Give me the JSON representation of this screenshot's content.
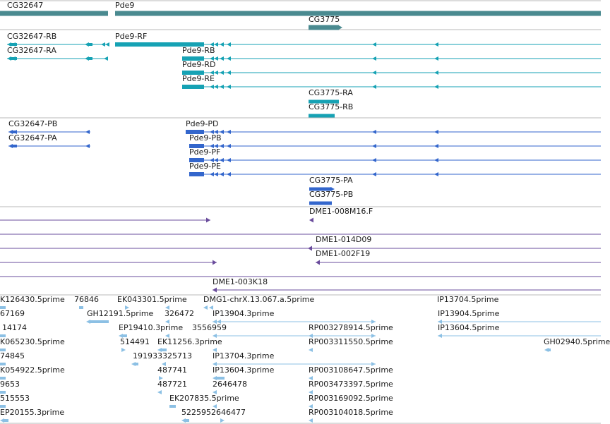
{
  "colors": {
    "gene": "#4a8a90",
    "mrna": "#16a2b4",
    "protein": "#3366cc",
    "clone": "#6a4c9c",
    "est": "#8cc0e4",
    "separator": "#b8b8b8"
  },
  "tracks": {
    "gene": {
      "title": "",
      "features": [
        {
          "id": "g1",
          "label": "CG32647"
        },
        {
          "id": "g2",
          "label": "Pde9"
        },
        {
          "id": "g3",
          "label": "CG3775"
        }
      ]
    },
    "mrna": {
      "title": "",
      "features": [
        {
          "id": "t1",
          "label": "CG32647-RB"
        },
        {
          "id": "t2",
          "label": "CG32647-RA"
        },
        {
          "id": "t3",
          "label": "Pde9-RF"
        },
        {
          "id": "t4",
          "label": "Pde9-RB"
        },
        {
          "id": "t5",
          "label": "Pde9-RD"
        },
        {
          "id": "t6",
          "label": "Pde9-RE"
        },
        {
          "id": "t7",
          "label": "CG3775-RA"
        },
        {
          "id": "t8",
          "label": "CG3775-RB"
        }
      ]
    },
    "protein": {
      "title": "",
      "features": [
        {
          "id": "p1",
          "label": "CG32647-PB"
        },
        {
          "id": "p2",
          "label": "CG32647-PA"
        },
        {
          "id": "p3",
          "label": "Pde9-PD"
        },
        {
          "id": "p4",
          "label": "Pde9-PB"
        },
        {
          "id": "p5",
          "label": "Pde9-PF"
        },
        {
          "id": "p6",
          "label": "Pde9-PE"
        },
        {
          "id": "p7",
          "label": "CG3775-PA"
        },
        {
          "id": "p8",
          "label": "CG3775-PB"
        }
      ]
    },
    "clone": {
      "title": "",
      "features": [
        {
          "id": "c1",
          "label": "DME1-008M16.F"
        },
        {
          "id": "c2",
          "label": "DME1-014D09"
        },
        {
          "id": "c3",
          "label": "DME1-002F19"
        },
        {
          "id": "c4",
          "label": "DME1-003K18"
        }
      ]
    },
    "est": {
      "title": "",
      "labels": [
        {
          "id": "e1",
          "label": "K126430.5prime"
        },
        {
          "id": "e2",
          "label": "76846"
        },
        {
          "id": "e3",
          "label": "EK043301.5prime"
        },
        {
          "id": "e4",
          "label": "DMG1-chrX.13.067.a.5prime"
        },
        {
          "id": "e5",
          "label": "IP13704.5prime"
        },
        {
          "id": "e6",
          "label": "67169"
        },
        {
          "id": "e7",
          "label": "GH12191.5prime"
        },
        {
          "id": "e8",
          "label": "326472"
        },
        {
          "id": "e9",
          "label": "IP13904.3prime"
        },
        {
          "id": "e10",
          "label": "IP13904.5prime"
        },
        {
          "id": "e11",
          "label": "14174"
        },
        {
          "id": "e12",
          "label": "EP19410.3prime"
        },
        {
          "id": "e13",
          "label": "3556959"
        },
        {
          "id": "e14",
          "label": "RP003278914.5prime"
        },
        {
          "id": "e15",
          "label": "IP13604.5prime"
        },
        {
          "id": "e16",
          "label": "K065230.5prime"
        },
        {
          "id": "e17",
          "label": "514491"
        },
        {
          "id": "e18",
          "label": "EK11256.3prime"
        },
        {
          "id": "e19",
          "label": "RP003311550.5prime"
        },
        {
          "id": "e20",
          "label": "GH02940.5prime"
        },
        {
          "id": "e21",
          "label": "74845"
        },
        {
          "id": "e22",
          "label": "191933325713"
        },
        {
          "id": "e23",
          "label": "IP13704.3prime"
        },
        {
          "id": "e24",
          "label": "K054922.5prime"
        },
        {
          "id": "e25",
          "label": "487741"
        },
        {
          "id": "e26",
          "label": "IP13604.3prime"
        },
        {
          "id": "e27",
          "label": "RP003108647.5prime"
        },
        {
          "id": "e28",
          "label": "9653"
        },
        {
          "id": "e29",
          "label": "487721"
        },
        {
          "id": "e30",
          "label": "2646478"
        },
        {
          "id": "e31",
          "label": "RP003473397.5prime"
        },
        {
          "id": "e32",
          "label": "515553"
        },
        {
          "id": "e33",
          "label": "EK207835.5prime"
        },
        {
          "id": "e34",
          "label": "RP003169092.5prime"
        },
        {
          "id": "e35",
          "label": "EP20155.3prime"
        },
        {
          "id": "e36",
          "label": "5225952646477"
        },
        {
          "id": "e37",
          "label": "RP003104018.5prime"
        }
      ]
    }
  }
}
